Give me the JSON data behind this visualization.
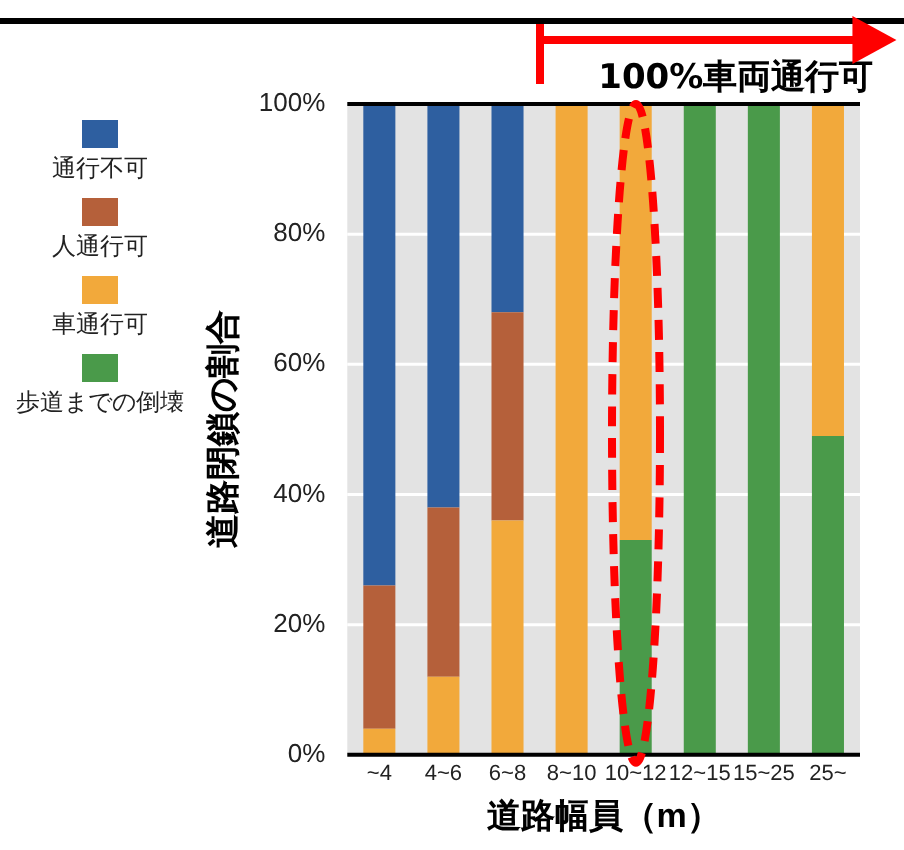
{
  "chart_data": {
    "type": "bar",
    "stacked": true,
    "xlabel": "道路幅員（m）",
    "ylabel": "道路閉鎖の割合",
    "categories": [
      "~4",
      "4~6",
      "6~8",
      "8~10",
      "10~12",
      "12~15",
      "15~25",
      "25~"
    ],
    "series": [
      {
        "name": "歩道までの倒壊",
        "color": "#4a9a4a",
        "values": [
          0,
          0,
          0,
          0,
          33,
          100,
          100,
          49
        ]
      },
      {
        "name": "車通行可",
        "color": "#f2a93b",
        "values": [
          4,
          12,
          36,
          100,
          67,
          0,
          0,
          51
        ]
      },
      {
        "name": "人通行可",
        "color": "#b5603a",
        "values": [
          22,
          26,
          32,
          0,
          0,
          0,
          0,
          0
        ]
      },
      {
        "name": "通行不可",
        "color": "#2e5fa0",
        "values": [
          74,
          62,
          32,
          0,
          0,
          0,
          0,
          0
        ]
      }
    ],
    "ylim": [
      0,
      100
    ],
    "yticks": [
      {
        "value": 0,
        "label": "0%"
      },
      {
        "value": 20,
        "label": "20%"
      },
      {
        "value": 40,
        "label": "40%"
      },
      {
        "value": 60,
        "label": "60%"
      },
      {
        "value": 80,
        "label": "80%"
      },
      {
        "value": 100,
        "label": "100%"
      }
    ],
    "grid": "y",
    "legend": "left",
    "annotations": [
      "100%車両通行可"
    ]
  }
}
